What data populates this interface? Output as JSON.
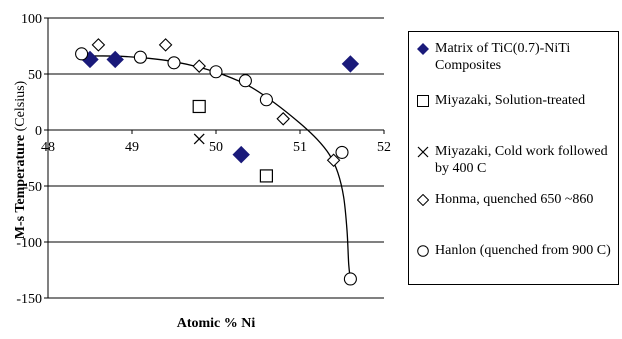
{
  "chart_data": {
    "type": "scatter",
    "xlabel": "Atomic % Ni",
    "ylabel_bold": "M-s Temperature",
    "ylabel_normal": " (Celsius)",
    "xlim": [
      48,
      52
    ],
    "ylim": [
      -150,
      100
    ],
    "xticks": [
      "48",
      "49",
      "50",
      "51",
      "52"
    ],
    "yticks": [
      "100",
      "50",
      "0",
      "-50",
      "-100",
      "-150"
    ],
    "xtick_values": [
      48,
      49,
      50,
      51,
      52
    ],
    "ytick_values": [
      100,
      50,
      0,
      -50,
      -100,
      -150
    ],
    "grid": "horizontal",
    "legend_position": "right",
    "series": [
      {
        "name": "Matrix of TiC(0.7)-NiTi Composites",
        "marker": "filled-diamond",
        "color": "#1a1a7a",
        "points": [
          [
            48.5,
            63
          ],
          [
            48.8,
            63
          ],
          [
            50.3,
            -22
          ],
          [
            51.6,
            59
          ]
        ]
      },
      {
        "name": "Miyazaki, Solution-treated",
        "marker": "square",
        "points": [
          [
            49.8,
            21
          ],
          [
            50.6,
            -41
          ]
        ]
      },
      {
        "name": "Miyazaki, Cold work followed by 400 C",
        "marker": "x",
        "points": [
          [
            49.8,
            -8
          ]
        ]
      },
      {
        "name": "Honma, quenched  650 ~860",
        "marker": "diamond",
        "points": [
          [
            48.6,
            76
          ],
          [
            49.4,
            76
          ],
          [
            49.8,
            57
          ],
          [
            50.8,
            10
          ],
          [
            51.4,
            -27
          ]
        ]
      },
      {
        "name": "Hanlon (quenched from 900 C)",
        "marker": "circle",
        "points": [
          [
            48.4,
            68
          ],
          [
            49.1,
            65
          ],
          [
            49.5,
            60
          ],
          [
            50.0,
            52
          ],
          [
            50.35,
            44
          ],
          [
            50.6,
            27
          ],
          [
            51.5,
            -20
          ],
          [
            51.6,
            -133
          ]
        ]
      }
    ],
    "trend_line": [
      [
        48.4,
        66
      ],
      [
        48.8,
        66
      ],
      [
        49.2,
        64
      ],
      [
        49.5,
        61
      ],
      [
        49.8,
        56
      ],
      [
        50.1,
        49
      ],
      [
        50.4,
        39
      ],
      [
        50.7,
        24
      ],
      [
        51.0,
        6
      ],
      [
        51.2,
        -8
      ],
      [
        51.35,
        -22
      ],
      [
        51.45,
        -38
      ],
      [
        51.52,
        -60
      ],
      [
        51.56,
        -90
      ],
      [
        51.58,
        -120
      ],
      [
        51.6,
        -133
      ]
    ]
  }
}
